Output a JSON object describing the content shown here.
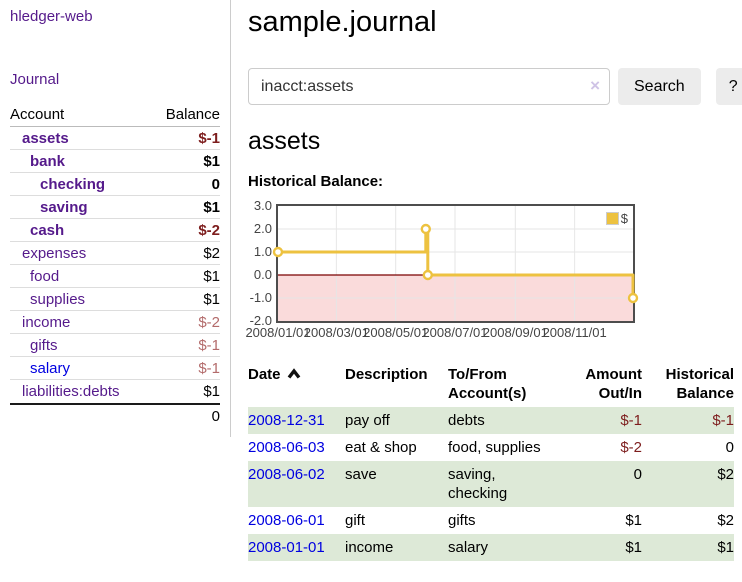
{
  "app": {
    "brand": "hledger-web",
    "nav_journal": "Journal"
  },
  "colors": {
    "link_visited": "#551a8b",
    "link_unvisited": "#0000e0",
    "negative_strong": "#7d1d1d",
    "negative_soft": "#b36b6b",
    "row_stripe_green": "#dde9d7",
    "chart_line": "#edc240",
    "chart_below_zero_fill": "#fadbdb",
    "chart_zero_line": "#7b0000",
    "button_bg": "#ececec"
  },
  "sidebar": {
    "columns": {
      "account": "Account",
      "balance": "Balance"
    },
    "accounts": [
      {
        "name": "assets",
        "depth": 1,
        "balance": "$-1",
        "bold": true,
        "neg": true
      },
      {
        "name": "bank",
        "depth": 2,
        "balance": "$1",
        "bold": true,
        "neg": false
      },
      {
        "name": "checking",
        "depth": 3,
        "balance": "0",
        "bold": true,
        "neg": false
      },
      {
        "name": "saving",
        "depth": 3,
        "balance": "$1",
        "bold": true,
        "neg": false
      },
      {
        "name": "cash",
        "depth": 2,
        "balance": "$-2",
        "bold": true,
        "neg": true
      },
      {
        "name": "expenses",
        "depth": 1,
        "balance": "$2",
        "bold": false,
        "neg": false
      },
      {
        "name": "food",
        "depth": 2,
        "balance": "$1",
        "bold": false,
        "neg": false
      },
      {
        "name": "supplies",
        "depth": 2,
        "balance": "$1",
        "bold": false,
        "neg": false
      },
      {
        "name": "income",
        "depth": 1,
        "balance": "$-2",
        "bold": false,
        "neg": true
      },
      {
        "name": "gifts",
        "depth": 2,
        "balance": "$-1",
        "bold": false,
        "neg": true
      },
      {
        "name": "salary",
        "depth": 2,
        "balance": "$-1",
        "bold": false,
        "neg": true,
        "unvisited": true
      },
      {
        "name": "liabilities:debts",
        "depth": 1,
        "balance": "$1",
        "bold": false,
        "neg": false
      }
    ],
    "total": "0"
  },
  "header": {
    "title": "sample.journal"
  },
  "search": {
    "value": "inacct:assets",
    "clear_icon": "×",
    "button_label": "Search",
    "help_label": "?"
  },
  "account_page": {
    "heading": "assets",
    "chart_label": "Historical Balance:"
  },
  "chart_data": {
    "type": "line",
    "title": "Historical Balance",
    "step": true,
    "xrange": [
      "2008-01-01",
      "2008-12-31"
    ],
    "ylim": [
      -2.0,
      3.0
    ],
    "yticks": [
      3.0,
      2.0,
      1.0,
      0.0,
      -1.0,
      -2.0
    ],
    "xticks": [
      "2008/01/01",
      "2008/03/01",
      "2008/05/01",
      "2008/07/01",
      "2008/09/01",
      "2008/11/01"
    ],
    "legend": {
      "label": "$",
      "position": "top-right"
    },
    "series": [
      {
        "name": "$",
        "points": [
          {
            "x": "2008-01-01",
            "y": 1
          },
          {
            "x": "2008-06-01",
            "y": 2
          },
          {
            "x": "2008-06-03",
            "y": 0
          },
          {
            "x": "2008-12-31",
            "y": -1
          }
        ]
      }
    ],
    "colors": {
      "line": "#edc240",
      "marker_fill": "#ffffff",
      "grid": "#e6e6e6",
      "border": "#4d4d4d",
      "below_zero_fill": "#fadbdb",
      "zero_line": "#7b0000"
    }
  },
  "register": {
    "columns": [
      {
        "lines": [
          "Date"
        ],
        "align": "left",
        "sorted": "ascending"
      },
      {
        "lines": [
          "Description"
        ],
        "align": "left"
      },
      {
        "lines": [
          "To/From",
          "Account(s)"
        ],
        "align": "left"
      },
      {
        "lines": [
          "Amount",
          "Out/In"
        ],
        "align": "right"
      },
      {
        "lines": [
          "Historical",
          "Balance"
        ],
        "align": "right"
      }
    ],
    "rows": [
      {
        "date": "2008-12-31",
        "description": "pay off",
        "accounts": [
          "debts"
        ],
        "amount": "$-1",
        "amount_neg": true,
        "balance": "$-1",
        "balance_neg": true
      },
      {
        "date": "2008-06-03",
        "description": "eat & shop",
        "accounts": [
          "food, supplies"
        ],
        "amount": "$-2",
        "amount_neg": true,
        "balance": "0",
        "balance_neg": false
      },
      {
        "date": "2008-06-02",
        "description": "save",
        "accounts": [
          "saving,",
          "checking"
        ],
        "amount": "0",
        "amount_neg": false,
        "balance": "$2",
        "balance_neg": false
      },
      {
        "date": "2008-06-01",
        "description": "gift",
        "accounts": [
          "gifts"
        ],
        "amount": "$1",
        "amount_neg": false,
        "balance": "$2",
        "balance_neg": false
      },
      {
        "date": "2008-01-01",
        "description": "income",
        "accounts": [
          "salary"
        ],
        "amount": "$1",
        "amount_neg": false,
        "balance": "$1",
        "balance_neg": false
      }
    ]
  }
}
